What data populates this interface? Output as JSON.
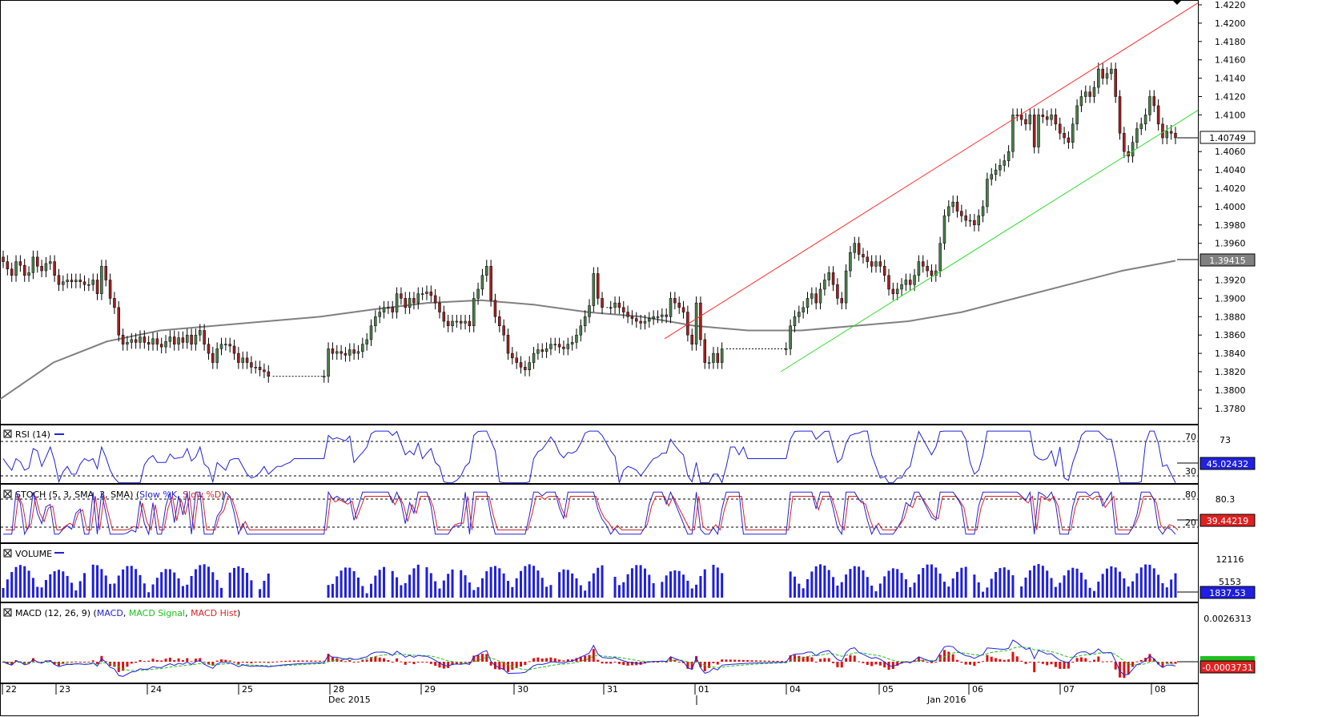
{
  "main": {
    "price_ticks": [
      "1.4220",
      "1.4200",
      "1.4180",
      "1.4160",
      "1.4140",
      "1.4120",
      "1.4100",
      "1.4060",
      "1.4040",
      "1.4020",
      "1.4000",
      "1.3980",
      "1.3960",
      "1.3920",
      "1.3900",
      "1.3880",
      "1.3860",
      "1.3840",
      "1.3820",
      "1.3800",
      "1.3780"
    ],
    "last_price_label": "1.40749",
    "ma_price_label": "1.39415"
  },
  "rsi": {
    "title": "RSI (14)",
    "level_high": "70",
    "level_low": "30",
    "axis_label": "73",
    "value_label": "45.02432"
  },
  "stoch": {
    "title": "STOCH (5, 3, SMA, 3, SMA)",
    "legend_k": "Slow %K",
    "legend_d": "Slow %D",
    "level_high": "80",
    "level_low": "20",
    "axis_label": "80.3",
    "value_label": "39.44219"
  },
  "volume": {
    "title": "VOLUME",
    "axis_label_1": "12116",
    "axis_label_2": "5153",
    "value_label": "1837.53"
  },
  "macd": {
    "title": "MACD (12, 26, 9)",
    "legend_macd": "MACD",
    "legend_signal": "MACD Signal",
    "legend_hist": "MACD Hist",
    "axis_label": "0.0026313",
    "value_label": "-0.0003731"
  },
  "xaxis": {
    "days": [
      "22",
      "23",
      "24",
      "25",
      "28",
      "29",
      "30",
      "31",
      "01",
      "04",
      "05",
      "06",
      "07",
      "08"
    ],
    "months": [
      "Dec 2015",
      "Jan 2016"
    ]
  },
  "colors": {
    "bull": "#4a7d4a",
    "bear": "#a02020",
    "ma": "#808080",
    "channel_top": "#ff3030",
    "channel_bottom": "#30dd30",
    "rsi": "#2222dd",
    "stoch_k": "#2222dd",
    "stoch_d": "#dd2222",
    "volume": "#1f1fe0",
    "macd": "#2222dd",
    "signal": "#20c020",
    "hist": "#dd1111"
  },
  "chart_data": {
    "type": "candlestick",
    "instrument_period": "Dec 2015 – Jan 2016",
    "y_range": [
      1.377,
      1.4225
    ],
    "last_price": 1.40749,
    "ma_value": 1.39415,
    "closes": [
      1.394,
      1.3932,
      1.3925,
      1.394,
      1.3936,
      1.3925,
      1.3928,
      1.3945,
      1.3935,
      1.393,
      1.3938,
      1.394,
      1.3925,
      1.3915,
      1.3918,
      1.392,
      1.3918,
      1.392,
      1.3918,
      1.3915,
      1.3915,
      1.392,
      1.3905,
      1.3935,
      1.392,
      1.39,
      1.389,
      1.386,
      1.385,
      1.3852,
      1.3855,
      1.3852,
      1.3858,
      1.3852,
      1.385,
      1.3856,
      1.385,
      1.3847,
      1.3853,
      1.3858,
      1.385,
      1.3857,
      1.3852,
      1.386,
      1.385,
      1.386,
      1.3865,
      1.385,
      1.384,
      1.383,
      1.3845,
      1.385,
      1.385,
      1.3848,
      1.384,
      1.383,
      1.3835,
      1.383,
      1.3825,
      1.3825,
      1.3822,
      1.382,
      1.3815,
      1.3815,
      1.3815,
      1.3815,
      1.3815,
      1.3815,
      1.3815,
      1.3815,
      1.3815,
      1.3815,
      1.3815,
      1.3815,
      1.3815,
      1.3815,
      1.3845,
      1.384,
      1.3842,
      1.384,
      1.3838,
      1.3844,
      1.384,
      1.3842,
      1.385,
      1.3855,
      1.387,
      1.388,
      1.3885,
      1.389,
      1.389,
      1.3885,
      1.3905,
      1.39,
      1.389,
      1.39,
      1.3895,
      1.3905,
      1.3905,
      1.3907,
      1.3903,
      1.3895,
      1.3885,
      1.3875,
      1.387,
      1.3875,
      1.3875,
      1.3873,
      1.3875,
      1.387,
      1.39,
      1.391,
      1.3925,
      1.3935,
      1.3898,
      1.388,
      1.387,
      1.386,
      1.384,
      1.3835,
      1.383,
      1.3825,
      1.3822,
      1.383,
      1.384,
      1.3844,
      1.3842,
      1.3845,
      1.385,
      1.385,
      1.3847,
      1.3845,
      1.385,
      1.3852,
      1.386,
      1.387,
      1.388,
      1.3892,
      1.3927,
      1.39,
      1.389,
      1.389,
      1.389,
      1.3895,
      1.389,
      1.3885,
      1.388,
      1.3878,
      1.3875,
      1.3873,
      1.3875,
      1.3878,
      1.388,
      1.388,
      1.3882,
      1.388,
      1.39,
      1.3895,
      1.389,
      1.3885,
      1.386,
      1.385,
      1.3895,
      1.3855,
      1.383,
      1.383,
      1.384,
      1.383,
      1.3845,
      1.3845,
      1.3845,
      1.3845,
      1.3845,
      1.3845,
      1.3845,
      1.3845,
      1.3845,
      1.3845,
      1.3845,
      1.3845,
      1.3845,
      1.3845,
      1.3845,
      1.3845,
      1.387,
      1.388,
      1.3885,
      1.389,
      1.39,
      1.3905,
      1.3895,
      1.391,
      1.392,
      1.3928,
      1.3915,
      1.39,
      1.3895,
      1.393,
      1.395,
      1.396,
      1.3948,
      1.3945,
      1.394,
      1.3935,
      1.394,
      1.3935,
      1.3925,
      1.391,
      1.3905,
      1.391,
      1.3915,
      1.392,
      1.3915,
      1.3925,
      1.394,
      1.3935,
      1.393,
      1.3925,
      1.393,
      1.396,
      1.399,
      1.4,
      1.4005,
      1.3995,
      1.399,
      1.3985,
      1.3985,
      1.398,
      1.399,
      1.4,
      1.403,
      1.4035,
      1.404,
      1.4045,
      1.405,
      1.406,
      1.41,
      1.41,
      1.4095,
      1.409,
      1.41,
      1.4065,
      1.41,
      1.4098,
      1.4095,
      1.41,
      1.409,
      1.408,
      1.4075,
      1.407,
      1.409,
      1.411,
      1.412,
      1.4125,
      1.412,
      1.413,
      1.415,
      1.414,
      1.4145,
      1.415,
      1.412,
      1.408,
      1.406,
      1.4055,
      1.407,
      1.4085,
      1.409,
      1.41,
      1.412,
      1.411,
      1.409,
      1.4075,
      1.4082,
      1.408,
      1.4075
    ],
    "ma_values": [
      1.379,
      1.383,
      1.3853,
      1.3865,
      1.387,
      1.3875,
      1.388,
      1.3888,
      1.3895,
      1.3898,
      1.3893,
      1.3885,
      1.388,
      1.387,
      1.3865,
      1.3865,
      1.387,
      1.3875,
      1.3885,
      1.39,
      1.3915,
      1.393,
      1.3941
    ],
    "channel_top": {
      "from_price": 1.3856,
      "to_price": 1.4222
    },
    "channel_bottom": {
      "from_price": 1.382,
      "to_price": 1.4105
    }
  }
}
